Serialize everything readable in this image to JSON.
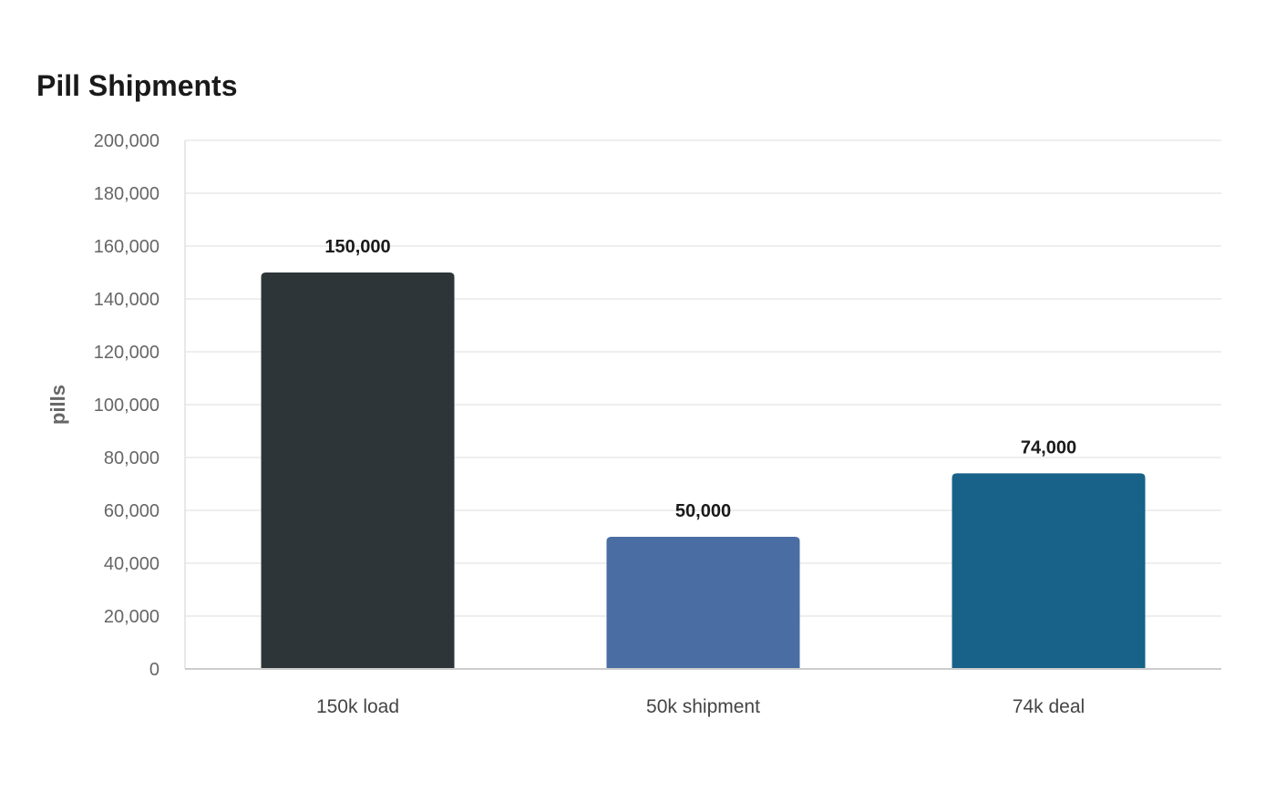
{
  "chart_data": {
    "type": "bar",
    "title": "Pill Shipments",
    "xlabel": "",
    "ylabel": "pills",
    "categories": [
      "150k load",
      "50k shipment",
      "74k deal"
    ],
    "values": [
      150000,
      50000,
      74000
    ],
    "value_labels": [
      "150,000",
      "50,000",
      "74,000"
    ],
    "colors": [
      "#2e3538",
      "#4a6ea3",
      "#186189"
    ],
    "ylim": [
      0,
      200000
    ],
    "yticks": [
      0,
      20000,
      40000,
      60000,
      80000,
      100000,
      120000,
      140000,
      160000,
      180000,
      200000
    ],
    "ytick_labels": [
      "0",
      "20,000",
      "40,000",
      "60,000",
      "80,000",
      "100,000",
      "120,000",
      "140,000",
      "160,000",
      "180,000",
      "200,000"
    ],
    "grid": true,
    "legend": "none"
  }
}
